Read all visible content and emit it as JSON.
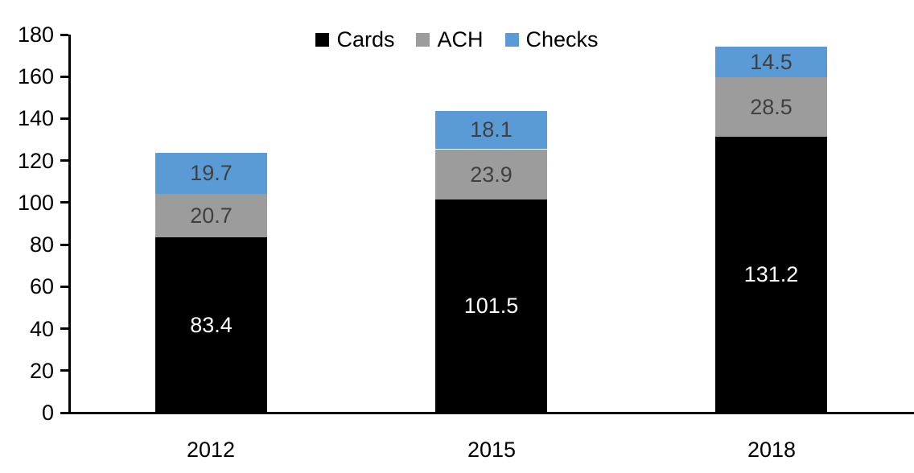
{
  "chart_data": {
    "type": "bar",
    "stacked": true,
    "title": "",
    "xlabel": "",
    "ylabel": "",
    "categories": [
      "2012",
      "2015",
      "2018"
    ],
    "series": [
      {
        "name": "Cards",
        "color": "#000000",
        "label_color": "#FFFFFF",
        "values": [
          83.4,
          101.5,
          131.2
        ]
      },
      {
        "name": "ACH",
        "color": "#9C9C9C",
        "label_color": "#404040",
        "values": [
          20.7,
          23.9,
          28.5
        ]
      },
      {
        "name": "Checks",
        "color": "#5B9BD5",
        "label_color": "#404040",
        "values": [
          19.7,
          18.1,
          14.5
        ]
      }
    ],
    "totals": [
      123.8,
      143.5,
      174.2
    ],
    "ylim": [
      0,
      180
    ],
    "ytick_step": 20,
    "ytick_labels": [
      "0",
      "20",
      "40",
      "60",
      "80",
      "100",
      "120",
      "140",
      "160",
      "180"
    ],
    "legend_entries": [
      "Cards",
      "ACH",
      "Checks"
    ],
    "legend_position": "top-center",
    "grid": false,
    "axis_color": "#000000",
    "background_color": "#FFFFFF"
  }
}
